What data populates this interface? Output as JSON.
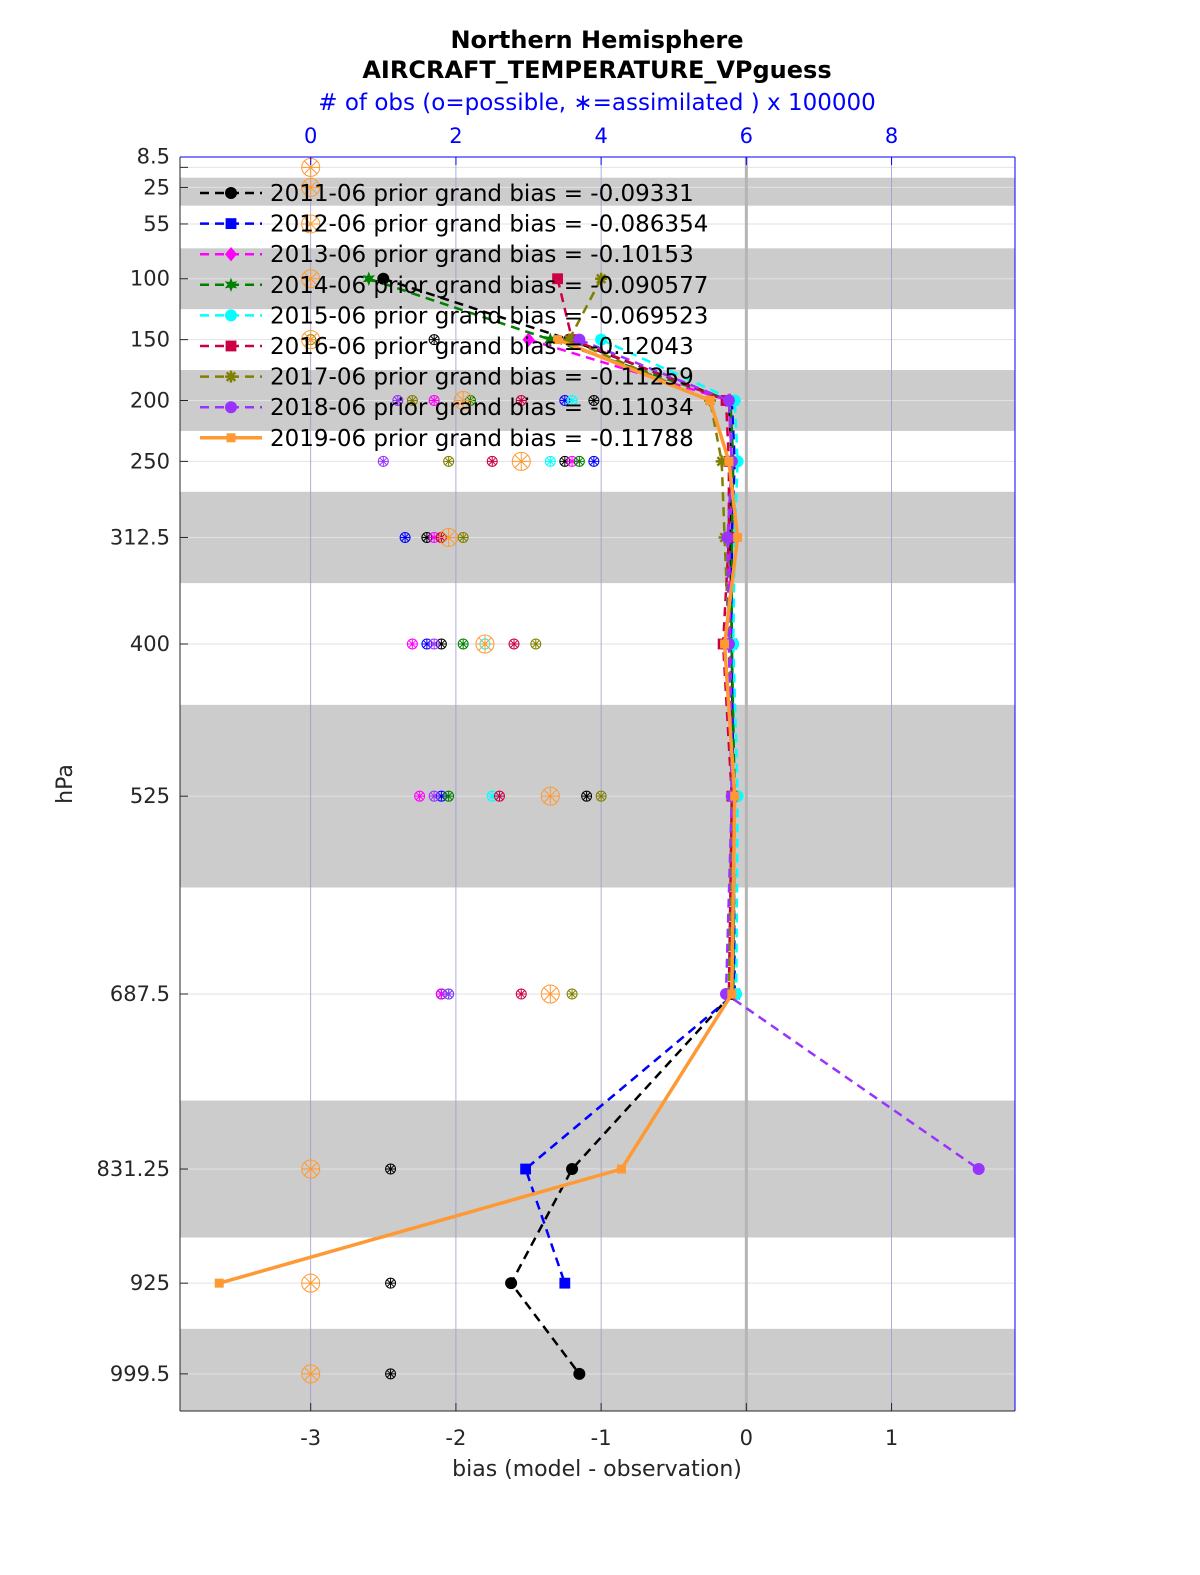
{
  "chart_data": {
    "type": "line",
    "title": "Northern Hemisphere",
    "subtitle": "AIRCRAFT_TEMPERATURE_VPguess",
    "top_axis_label": "# of obs (o=possible, ∗=assimilated ) x 100000",
    "top_axis_ticks": [
      "0",
      "2",
      "4",
      "6",
      "8"
    ],
    "top_axis_color": "#0000ff",
    "xlabel": "bias (model - observation)",
    "ylabel": "hPa",
    "x_ticks": [
      "-3",
      "-2",
      "-1",
      "0",
      "1"
    ],
    "xlim": [
      -3.9,
      1.85
    ],
    "ylim": [
      1030,
      0
    ],
    "y_scale": "linear, reversed",
    "grid": "vertical lines at x ticks",
    "legend_position": "top-left",
    "levels": [
      "8.5",
      "25",
      "55",
      "100",
      "150",
      "200",
      "250",
      "312.5",
      "400",
      "525",
      "687.5",
      "831.25",
      "925",
      "999.5"
    ],
    "level_values": [
      8.5,
      25,
      55,
      100,
      150,
      200,
      250,
      312.5,
      400,
      525,
      687.5,
      831.25,
      925,
      999.5
    ],
    "shaded_bands": [
      [
        17,
        40
      ],
      [
        75,
        125
      ],
      [
        175,
        225
      ],
      [
        275,
        350
      ],
      [
        450,
        600
      ],
      [
        775,
        887.5
      ],
      [
        962.5,
        1030
      ]
    ],
    "series": [
      {
        "name": "2011-06 prior grand bias = -0.09331",
        "color": "#000000",
        "marker": "circle",
        "style": "dashed",
        "points": [
          [
            -2.5,
            100
          ],
          [
            -1.22,
            150
          ],
          [
            -0.12,
            200
          ],
          [
            -0.1,
            250
          ],
          [
            -0.11,
            312.5
          ],
          [
            -0.1,
            400
          ],
          [
            -0.09,
            525
          ],
          [
            -0.1,
            687.5
          ],
          [
            -1.2,
            831.25
          ],
          [
            -1.62,
            925
          ],
          [
            -1.15,
            999.5
          ]
        ],
        "obs": [
          [
            1.7,
            150
          ],
          [
            3.9,
            200
          ],
          [
            3.5,
            250
          ],
          [
            1.6,
            312.5
          ],
          [
            1.8,
            400
          ],
          [
            3.8,
            525
          ],
          [
            1.8,
            687.5
          ],
          [
            1.1,
            831.25
          ],
          [
            1.1,
            925
          ],
          [
            1.1,
            999.5
          ]
        ]
      },
      {
        "name": "2012-06 prior grand bias = -0.086354",
        "color": "#0000ff",
        "marker": "square",
        "style": "dashed",
        "points": [
          [
            -0.1,
            200
          ],
          [
            -0.08,
            250
          ],
          [
            -0.1,
            312.5
          ],
          [
            -0.1,
            400
          ],
          [
            -0.09,
            525
          ],
          [
            -0.08,
            687.5
          ],
          [
            -1.52,
            831.25
          ],
          [
            -1.25,
            925
          ]
        ],
        "obs": [
          [
            3.5,
            200
          ],
          [
            3.9,
            250
          ],
          [
            1.3,
            312.5
          ],
          [
            1.6,
            400
          ],
          [
            1.8,
            525
          ],
          [
            1.8,
            687.5
          ]
        ]
      },
      {
        "name": "2013-06 prior grand bias = -0.10153",
        "color": "#ff00ff",
        "marker": "diamond",
        "style": "dashed",
        "points": [
          [
            -1.5,
            150
          ],
          [
            -0.12,
            200
          ],
          [
            -0.1,
            250
          ],
          [
            -0.12,
            312.5
          ],
          [
            -0.11,
            400
          ],
          [
            -0.1,
            525
          ],
          [
            -0.12,
            687.5
          ]
        ],
        "obs": [
          [
            1.7,
            200
          ],
          [
            3.6,
            250
          ],
          [
            1.7,
            312.5
          ],
          [
            1.4,
            400
          ],
          [
            1.5,
            525
          ],
          [
            1.8,
            687.5
          ]
        ]
      },
      {
        "name": "2014-06 prior grand bias = -0.090577",
        "color": "#008000",
        "marker": "hexagram",
        "style": "dashed",
        "points": [
          [
            -2.6,
            100
          ],
          [
            -1.35,
            150
          ],
          [
            -0.11,
            200
          ],
          [
            -0.09,
            250
          ],
          [
            -0.1,
            312.5
          ],
          [
            -0.1,
            400
          ],
          [
            -0.08,
            525
          ],
          [
            -0.09,
            687.5
          ]
        ],
        "obs": [
          [
            2.2,
            200
          ],
          [
            3.7,
            250
          ],
          [
            1.8,
            312.5
          ],
          [
            2.1,
            400
          ],
          [
            1.9,
            525
          ],
          [
            1.9,
            687.5
          ]
        ]
      },
      {
        "name": "2015-06 prior grand bias = -0.069523",
        "color": "#00ffff",
        "marker": "hexagon",
        "style": "dashed",
        "points": [
          [
            -1.0,
            150
          ],
          [
            -0.08,
            200
          ],
          [
            -0.06,
            250
          ],
          [
            -0.08,
            312.5
          ],
          [
            -0.09,
            400
          ],
          [
            -0.06,
            525
          ],
          [
            -0.07,
            687.5
          ]
        ],
        "obs": [
          [
            3.6,
            200
          ],
          [
            3.3,
            250
          ],
          [
            2.4,
            400
          ],
          [
            2.5,
            525
          ],
          [
            1.9,
            687.5
          ]
        ]
      },
      {
        "name": "2016-06 prior grand bias = -0.12043",
        "color": "#cc0044",
        "marker": "square",
        "style": "dashed",
        "points": [
          [
            -1.3,
            100
          ],
          [
            -1.2,
            150
          ],
          [
            -0.14,
            200
          ],
          [
            -0.12,
            250
          ],
          [
            -0.12,
            312.5
          ],
          [
            -0.16,
            400
          ],
          [
            -0.1,
            525
          ],
          [
            -0.12,
            687.5
          ]
        ],
        "obs": [
          [
            2.9,
            200
          ],
          [
            2.5,
            250
          ],
          [
            1.8,
            312.5
          ],
          [
            2.8,
            400
          ],
          [
            2.6,
            525
          ],
          [
            2.9,
            687.5
          ]
        ]
      },
      {
        "name": "2017-06 prior grand bias = -0.11259",
        "color": "#808000",
        "marker": "asterisk",
        "style": "dashed",
        "points": [
          [
            -1.0,
            100
          ],
          [
            -1.22,
            150
          ],
          [
            -0.25,
            200
          ],
          [
            -0.17,
            250
          ],
          [
            -0.15,
            312.5
          ],
          [
            -0.12,
            400
          ],
          [
            -0.1,
            525
          ],
          [
            -0.12,
            687.5
          ]
        ],
        "obs": [
          [
            0.0,
            150
          ],
          [
            1.4,
            200
          ],
          [
            1.9,
            250
          ],
          [
            2.1,
            312.5
          ],
          [
            3.1,
            400
          ],
          [
            4.0,
            525
          ],
          [
            3.6,
            687.5
          ]
        ]
      },
      {
        "name": "2018-06 prior grand bias = -0.11034",
        "color": "#9933ff",
        "marker": "circle",
        "style": "dashed",
        "points": [
          [
            -1.15,
            150
          ],
          [
            -0.12,
            200
          ],
          [
            -0.1,
            250
          ],
          [
            -0.13,
            312.5
          ],
          [
            -0.12,
            400
          ],
          [
            -0.1,
            525
          ],
          [
            -0.14,
            687.5
          ],
          [
            1.6,
            831.25
          ]
        ],
        "obs": [
          [
            1.2,
            200
          ],
          [
            1.0,
            250
          ],
          [
            1.7,
            400
          ],
          [
            1.7,
            525
          ],
          [
            1.9,
            687.5
          ]
        ]
      },
      {
        "name": "2019-06 prior grand bias = -0.11788",
        "color": "#ff9933",
        "marker": "square",
        "style": "solid",
        "points": [
          [
            -1.3,
            150
          ],
          [
            -0.25,
            200
          ],
          [
            -0.12,
            250
          ],
          [
            -0.06,
            312.5
          ],
          [
            -0.15,
            400
          ],
          [
            -0.08,
            525
          ],
          [
            -0.1,
            687.5
          ],
          [
            -0.86,
            831.25
          ],
          [
            -3.63,
            925
          ]
        ],
        "obs": [
          [
            0.0,
            8.5
          ],
          [
            0.0,
            25
          ],
          [
            0.0,
            55
          ],
          [
            0.0,
            100
          ],
          [
            0.0,
            150
          ],
          [
            2.1,
            200
          ],
          [
            2.9,
            250
          ],
          [
            1.9,
            312.5
          ],
          [
            2.4,
            400
          ],
          [
            3.3,
            525
          ],
          [
            3.3,
            687.5
          ],
          [
            0.0,
            831.25
          ],
          [
            0.0,
            925
          ],
          [
            0.0,
            999.5
          ]
        ]
      }
    ]
  }
}
